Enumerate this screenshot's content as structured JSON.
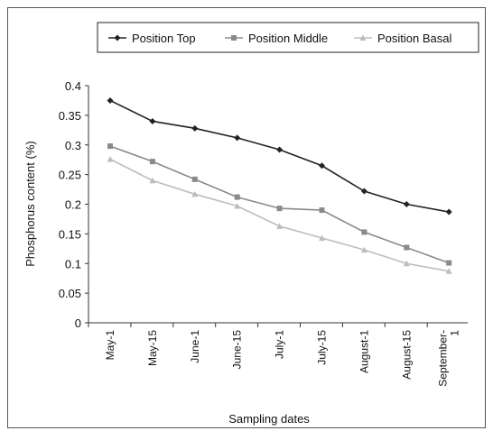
{
  "chart_data": {
    "type": "line",
    "title": "",
    "xlabel": "Sampling dates",
    "ylabel": "Phosphorus content (%)",
    "ylim": [
      0,
      0.4
    ],
    "yticks": [
      "0",
      "0.05",
      "0.1",
      "0.15",
      "0.2",
      "0.25",
      "0.3",
      "0.35",
      "0.4"
    ],
    "categories": [
      "May-1",
      "May-15",
      "June-1",
      "June-15",
      "July-1",
      "July-15",
      "August-1",
      "August-15",
      "September-1"
    ],
    "category_labels": [
      [
        "May-1"
      ],
      [
        "May-15"
      ],
      [
        "June-1"
      ],
      [
        "June-15"
      ],
      [
        "July-1"
      ],
      [
        "July-15"
      ],
      [
        "August-1"
      ],
      [
        "August-15"
      ],
      [
        "September-",
        "1"
      ]
    ],
    "grid": false,
    "legend": "top",
    "series": [
      {
        "name": "Position Top",
        "color": "#222222",
        "marker": "diamond",
        "values": [
          0.375,
          0.34,
          0.328,
          0.312,
          0.292,
          0.265,
          0.222,
          0.2,
          0.187
        ]
      },
      {
        "name": "Position Middle",
        "color": "#8a8a8a",
        "marker": "square",
        "values": [
          0.298,
          0.272,
          0.242,
          0.212,
          0.193,
          0.19,
          0.153,
          0.127,
          0.101
        ]
      },
      {
        "name": "Position Basal",
        "color": "#bdbdbd",
        "marker": "triangle",
        "values": [
          0.276,
          0.24,
          0.217,
          0.197,
          0.163,
          0.143,
          0.123,
          0.1,
          0.087
        ]
      }
    ]
  }
}
